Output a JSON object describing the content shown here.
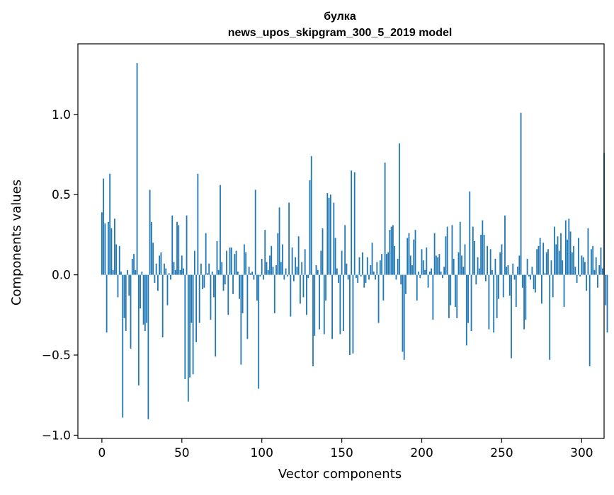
{
  "chart_data": {
    "type": "bar",
    "title": "булка",
    "subtitle": "news_upos_skipgram_300_5_2019 model",
    "xlabel": "Vector components",
    "ylabel": "Components values",
    "xlim": [
      -15,
      314
    ],
    "ylim": [
      -1.02,
      1.44
    ],
    "xticks": [
      0,
      50,
      100,
      150,
      200,
      250,
      300
    ],
    "yticks": [
      -1.0,
      -0.5,
      0.0,
      0.5,
      1.0
    ],
    "xtick_labels": [
      "0",
      "50",
      "100",
      "150",
      "200",
      "250",
      "300"
    ],
    "ytick_labels": [
      "−1.0",
      "−0.5",
      "0.0",
      "0.5",
      "1.0"
    ],
    "grid": false,
    "bar_color": "#1f77b4",
    "values": [
      0.39,
      0.6,
      0.32,
      -0.36,
      0.33,
      0.63,
      0.29,
      0.03,
      0.35,
      0.19,
      -0.14,
      0.18,
      0.02,
      -0.89,
      -0.27,
      -0.35,
      0.03,
      -0.13,
      -0.46,
      0.1,
      0.13,
      0.03,
      1.32,
      -0.69,
      -0.21,
      0.02,
      -0.31,
      -0.35,
      -0.3,
      -0.9,
      0.53,
      0.33,
      0.2,
      -0.05,
      0.07,
      -0.1,
      0.12,
      0.14,
      -0.39,
      0.07,
      0.04,
      -0.19,
      0.01,
      -0.03,
      0.37,
      0.08,
      0.03,
      0.33,
      0.31,
      0.03,
      0.12,
      0.04,
      -0.65,
      0.37,
      -0.79,
      -0.64,
      -0.3,
      -0.62,
      0.15,
      -0.42,
      0.63,
      -0.3,
      0.07,
      -0.09,
      -0.08,
      0.26,
      0.01,
      0.07,
      -0.28,
      0.02,
      -0.14,
      -0.51,
      0.21,
      0.03,
      0.56,
      0.08,
      -0.1,
      -0.06,
      0.15,
      -0.25,
      0.17,
      0.17,
      -0.12,
      0.13,
      0.15,
      0.02,
      -0.15,
      -0.56,
      -0.24,
      0.19,
      0.14,
      -0.4,
      0.05,
      0.01,
      0.02,
      -0.03,
      0.53,
      -0.16,
      -0.71,
      -0.01,
      0.1,
      -0.03,
      0.28,
      0.08,
      0.03,
      0.12,
      0.18,
      0.05,
      -0.24,
      0.06,
      0.26,
      0.42,
      0.08,
      0.19,
      -0.03,
      0.04,
      -0.01,
      0.45,
      -0.26,
      0.17,
      -0.04,
      0.11,
      0.05,
      0.24,
      -0.18,
      0.08,
      -0.14,
      0.16,
      -0.25,
      -0.02,
      0.59,
      0.74,
      -0.57,
      -0.38,
      0.06,
      0.03,
      -0.34,
      0.15,
      0.29,
      -0.37,
      -0.16,
      0.51,
      0.48,
      0.5,
      -0.4,
      0.45,
      0.23,
      0.04,
      -0.05,
      -0.37,
      0.15,
      -0.35,
      0.31,
      0.07,
      -0.03,
      -0.5,
      0.65,
      -0.49,
      0.64,
      -0.02,
      -0.05,
      0.11,
      -0.01,
      0.14,
      -0.08,
      -0.05,
      0.11,
      -0.03,
      0.06,
      0.2,
      0.02,
      -0.03,
      0.08,
      -0.3,
      0.09,
      0.13,
      -0.16,
      0.7,
      0.13,
      0.14,
      0.28,
      0.3,
      0.31,
      0.18,
      -0.03,
      0.1,
      0.82,
      -0.06,
      -0.48,
      -0.53,
      -0.12,
      0.23,
      0.26,
      0.12,
      0.06,
      0.22,
      0.28,
      -0.16,
      0.02,
      -0.02,
      0.16,
      0.09,
      0.03,
      0.17,
      -0.08,
      0.02,
      0.04,
      -0.28,
      0.26,
      0.12,
      0.11,
      0.13,
      0.02,
      -0.02,
      0.05,
      0.24,
      0.3,
      -0.27,
      -0.19,
      0.31,
      0.1,
      -0.2,
      -0.27,
      0.14,
      0.33,
      0.12,
      0.05,
      0.19,
      -0.44,
      -0.3,
      0.52,
      -0.35,
      0.3,
      0.21,
      -0.06,
      0.11,
      0.04,
      0.25,
      0.34,
      0.25,
      -0.04,
      0.18,
      -0.34,
      0.16,
      0.03,
      -0.36,
      0.1,
      -0.27,
      -0.15,
      0.14,
      0.19,
      -0.14,
      0.37,
      0.05,
      0.06,
      -0.13,
      -0.52,
      0.07,
      -0.03,
      -0.2,
      0.05,
      0.12,
      1.01,
      -0.08,
      -0.34,
      -0.28,
      0.1,
      -0.01,
      -0.03,
      0.05,
      -0.09,
      -0.11,
      0.16,
      0.18,
      0.23,
      -0.18,
      0.2,
      0.01,
      0.14,
      0.16,
      -0.53,
      0.09,
      -0.14,
      0.3,
      0.19,
      0.24,
      0.15,
      0.26,
      0.09,
      -0.2,
      0.34,
      0.22,
      0.35,
      0.27,
      0.14,
      0.18,
      0.05,
      -0.05,
      0.23,
      -0.01,
      0.12,
      0.11,
      0.08,
      -0.1,
      0.29,
      -0.57,
      0.16,
      0.18,
      0.03,
      0.11,
      -0.08,
      0.06,
      0.17,
      0.04,
      0.76,
      -0.19,
      -0.36
    ]
  }
}
